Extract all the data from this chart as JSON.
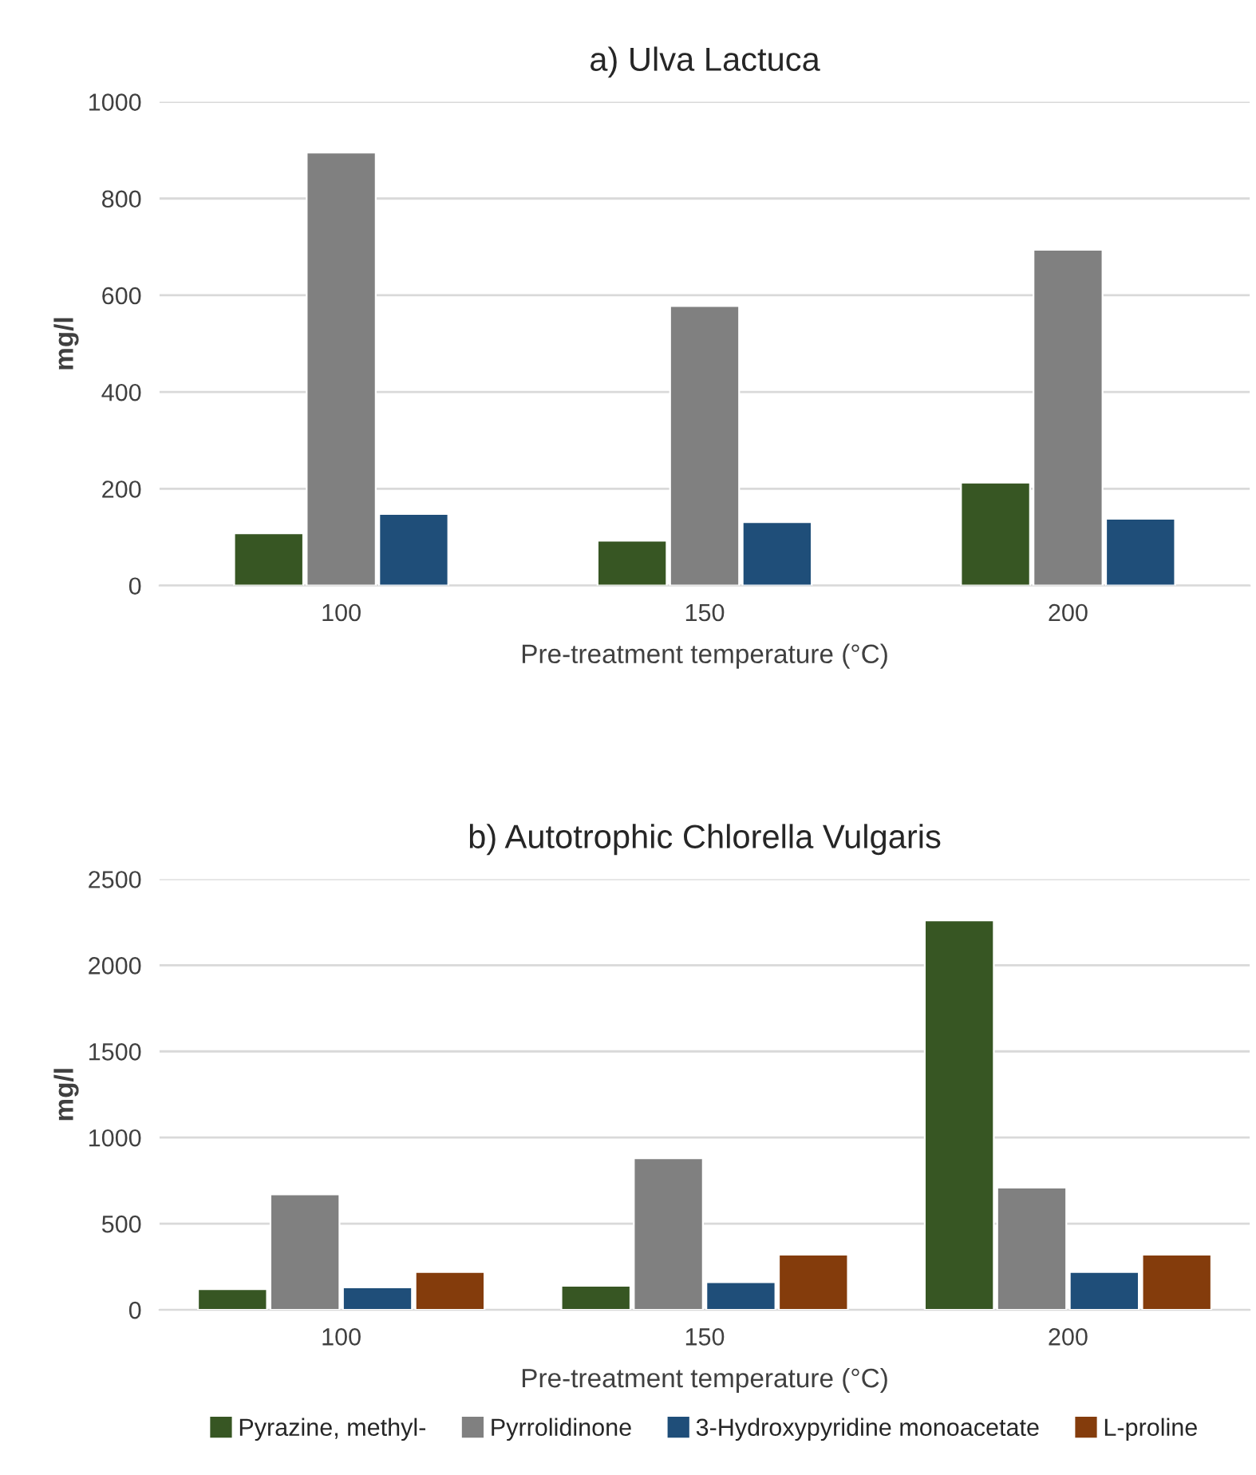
{
  "chart_data": [
    {
      "type": "bar",
      "title": "a) Ulva Lactuca",
      "xlabel": "Pre-treatment temperature (°C)",
      "ylabel": "mg/l",
      "categories": [
        "100",
        "150",
        "200"
      ],
      "series": [
        {
          "color": "#375623",
          "values": [
            108,
            93,
            213
          ]
        },
        {
          "color": "#808080",
          "values": [
            895,
            578,
            694
          ]
        },
        {
          "color": "#1f4e79",
          "values": [
            148,
            131,
            138
          ]
        }
      ],
      "ylim": [
        0,
        1000
      ],
      "yticks": [
        0,
        200,
        400,
        600,
        800,
        1000
      ],
      "grid": "y",
      "legend": false
    },
    {
      "type": "bar",
      "title": "b) Autotrophic Chlorella Vulgaris",
      "xlabel": "Pre-treatment temperature (°C)",
      "ylabel": "mg/l",
      "categories": [
        "100",
        "150",
        "200"
      ],
      "series": [
        {
          "name": "Pyrazine, methyl-",
          "color": "#375623",
          "values": [
            120,
            140,
            2260
          ]
        },
        {
          "name": "Pyrrolidinone",
          "color": "#808080",
          "values": [
            670,
            880,
            710
          ]
        },
        {
          "name": "3-Hydroxypyridine monoacetate",
          "color": "#1f4e79",
          "values": [
            130,
            160,
            220
          ]
        },
        {
          "name": "L-proline",
          "color": "#843c0c",
          "values": [
            220,
            320,
            320
          ]
        }
      ],
      "ylim": [
        0,
        2500
      ],
      "yticks": [
        0,
        500,
        1000,
        1500,
        2000,
        2500
      ],
      "grid": "y",
      "legend": "bottom"
    }
  ]
}
